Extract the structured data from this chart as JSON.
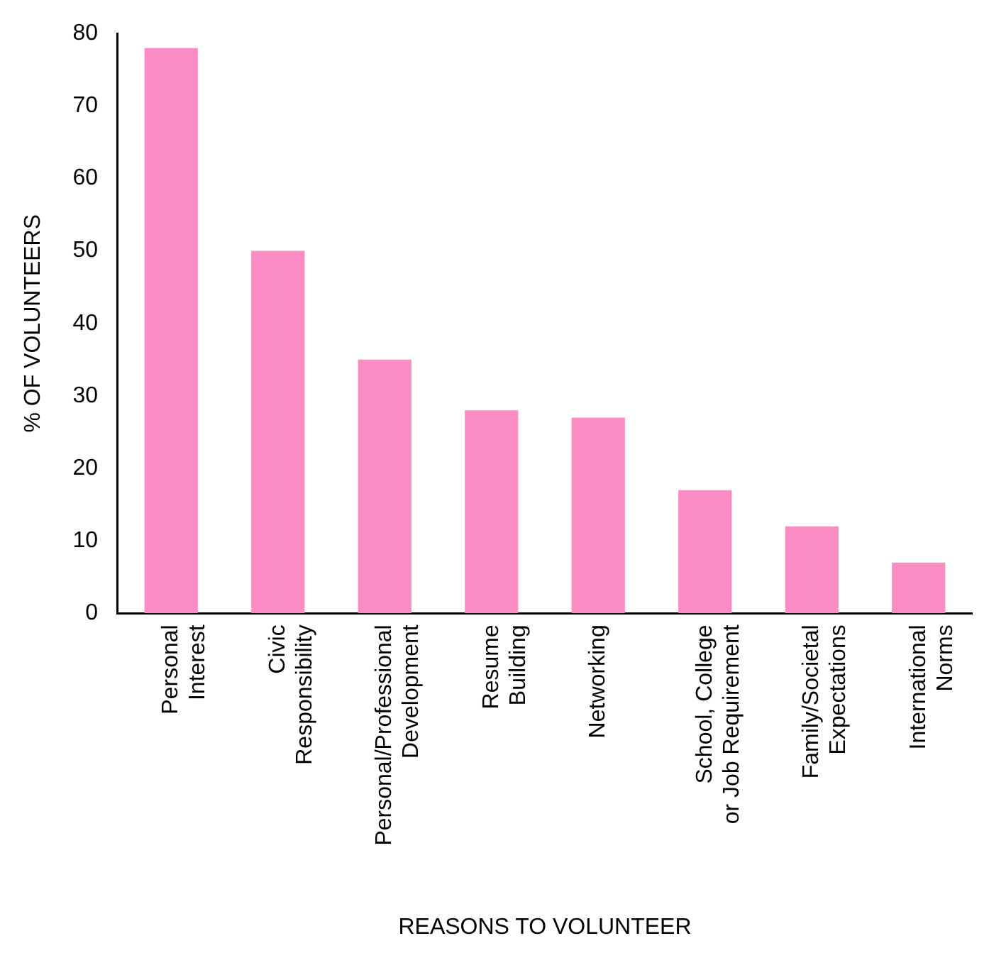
{
  "chart_data": {
    "type": "bar",
    "xlabel": "REASONS TO VOLUNTEER",
    "ylabel": "% OF VOLUNTEERS",
    "categories": [
      "Personal Interest",
      "Civic Responsibility",
      "Personal/Professional Development",
      "Resume Building",
      "Networking",
      "School, College or Job Requirement",
      "Family/Societal Expectations",
      "International Norms"
    ],
    "values": [
      78,
      50,
      35,
      28,
      27,
      17,
      12,
      7
    ],
    "color": "#fb8dc4",
    "ylim": [
      0,
      80
    ],
    "yticks": [
      0,
      10,
      20,
      30,
      40,
      50,
      60,
      70,
      80
    ],
    "grid": false,
    "legend": false
  }
}
